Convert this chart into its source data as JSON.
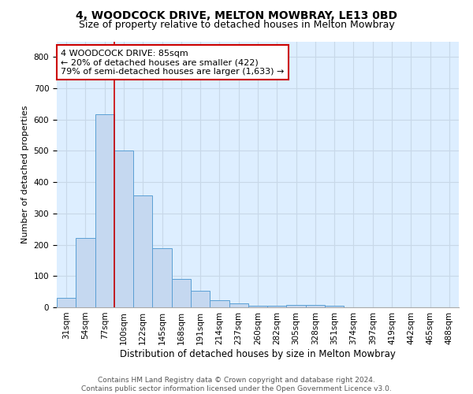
{
  "title_line1": "4, WOODCOCK DRIVE, MELTON MOWBRAY, LE13 0BD",
  "title_line2": "Size of property relative to detached houses in Melton Mowbray",
  "xlabel": "Distribution of detached houses by size in Melton Mowbray",
  "ylabel": "Number of detached properties",
  "categories": [
    "31sqm",
    "54sqm",
    "77sqm",
    "100sqm",
    "122sqm",
    "145sqm",
    "168sqm",
    "191sqm",
    "214sqm",
    "237sqm",
    "260sqm",
    "282sqm",
    "305sqm",
    "328sqm",
    "351sqm",
    "374sqm",
    "397sqm",
    "419sqm",
    "442sqm",
    "465sqm",
    "488sqm"
  ],
  "values": [
    30,
    222,
    618,
    500,
    357,
    190,
    90,
    52,
    23,
    13,
    5,
    5,
    8,
    7,
    5,
    0,
    0,
    0,
    0,
    0,
    0
  ],
  "bar_color": "#c5d8f0",
  "bar_edge_color": "#5a9fd4",
  "property_line_bin": 2,
  "annotation_line1": "4 WOODCOCK DRIVE: 85sqm",
  "annotation_line2": "← 20% of detached houses are smaller (422)",
  "annotation_line3": "79% of semi-detached houses are larger (1,633) →",
  "annotation_box_color": "#ffffff",
  "annotation_box_edge_color": "#cc0000",
  "ylim": [
    0,
    850
  ],
  "yticks": [
    0,
    100,
    200,
    300,
    400,
    500,
    600,
    700,
    800
  ],
  "grid_color": "#c8d8e8",
  "background_color": "#ddeeff",
  "footer_line1": "Contains HM Land Registry data © Crown copyright and database right 2024.",
  "footer_line2": "Contains public sector information licensed under the Open Government Licence v3.0.",
  "title_fontsize": 10,
  "subtitle_fontsize": 9,
  "xlabel_fontsize": 8.5,
  "ylabel_fontsize": 8,
  "tick_fontsize": 7.5,
  "annotation_fontsize": 8,
  "footer_fontsize": 6.5
}
